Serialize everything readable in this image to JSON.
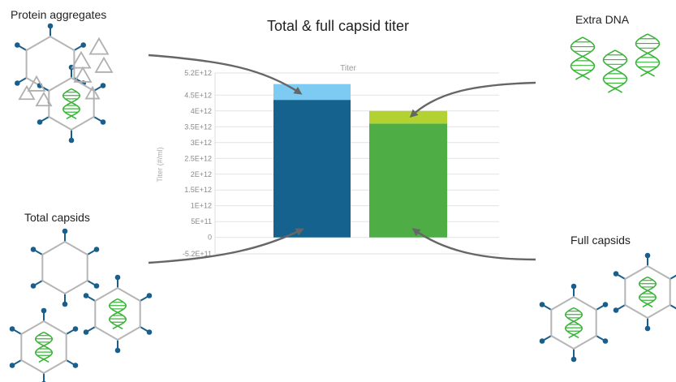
{
  "title": "Total & full capsid titer",
  "labels": {
    "protein_aggregates": "Protein aggregates",
    "extra_dna": "Extra DNA",
    "total_capsids": "Total capsids",
    "full_capsids": "Full capsids"
  },
  "colors": {
    "capsid_stroke": "#b5b5b5",
    "spike": "#1a5f8c",
    "dna": "#3cb43c",
    "arrow": "#666666",
    "total_bar": "#15628e",
    "total_extra": "#7dcbf3",
    "full_bar": "#4eae45",
    "full_extra": "#b3d232"
  },
  "chart_data": {
    "type": "bar",
    "title": "Titer",
    "ylabel": "Titer (#/ml)",
    "ylim": [
      -520000000000.0,
      5200000000000.0
    ],
    "ticks": [
      {
        "value": 5200000000000.0,
        "label": "5.2E+12"
      },
      {
        "value": 4500000000000.0,
        "label": "4.5E+12"
      },
      {
        "value": 4000000000000.0,
        "label": "4E+12"
      },
      {
        "value": 3500000000000.0,
        "label": "3.5E+12"
      },
      {
        "value": 3000000000000.0,
        "label": "3E+12"
      },
      {
        "value": 2500000000000.0,
        "label": "2.5E+12"
      },
      {
        "value": 2000000000000.0,
        "label": "2E+12"
      },
      {
        "value": 1500000000000.0,
        "label": "1.5E+12"
      },
      {
        "value": 1000000000000.0,
        "label": "1E+12"
      },
      {
        "value": 500000000000.0,
        "label": "5E+11"
      },
      {
        "value": 0,
        "label": "0"
      },
      {
        "value": -520000000000.0,
        "label": "-5.2E+11"
      }
    ],
    "bars": [
      {
        "base": 4350000000000.0,
        "extra": 500000000000.0
      },
      {
        "base": 3600000000000.0,
        "extra": 400000000000.0
      }
    ]
  }
}
